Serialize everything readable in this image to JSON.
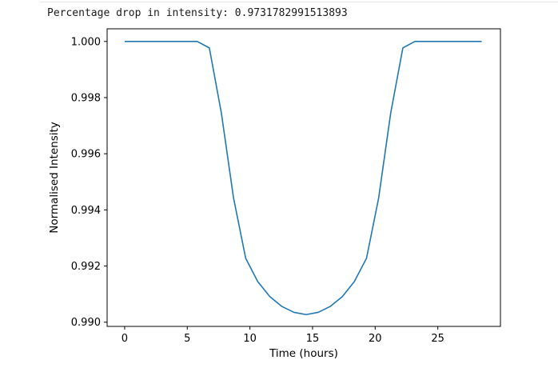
{
  "output": {
    "text": "Percentage drop in intensity: 0.9731782991513893"
  },
  "chart_data": {
    "type": "line",
    "title": "",
    "xlabel": "Time (hours)",
    "ylabel": "Normalised Intensity",
    "xlim": [
      -1.4,
      30.0
    ],
    "ylim": [
      0.98985,
      1.00045
    ],
    "xticks": [
      0,
      5,
      10,
      15,
      20,
      25
    ],
    "xtick_labels": [
      "0",
      "5",
      "10",
      "15",
      "20",
      "25"
    ],
    "yticks": [
      0.99,
      0.992,
      0.994,
      0.996,
      0.998,
      1.0
    ],
    "ytick_labels": [
      "0.990",
      "0.992",
      "0.994",
      "0.996",
      "0.998",
      "1.000"
    ],
    "grid": false,
    "series": [
      {
        "color": "#1f77b4",
        "x": [
          0.0,
          0.97,
          1.93,
          2.9,
          3.86,
          4.83,
          5.79,
          6.76,
          7.72,
          8.69,
          9.66,
          10.62,
          11.59,
          12.55,
          13.52,
          14.48,
          15.45,
          16.41,
          17.38,
          18.34,
          19.31,
          20.28,
          21.24,
          22.21,
          23.17,
          24.14,
          25.1,
          26.07,
          27.03,
          28.5
        ],
        "y": [
          1.0,
          1.0,
          1.0,
          1.0,
          1.0,
          1.0,
          1.0,
          0.99977,
          0.99745,
          0.99443,
          0.99228,
          0.99145,
          0.99091,
          0.99056,
          0.99035,
          0.99027,
          0.99035,
          0.99056,
          0.99091,
          0.99145,
          0.99228,
          0.99443,
          0.99745,
          0.99977,
          1.0,
          1.0,
          1.0,
          1.0,
          1.0,
          1.0
        ]
      }
    ]
  }
}
